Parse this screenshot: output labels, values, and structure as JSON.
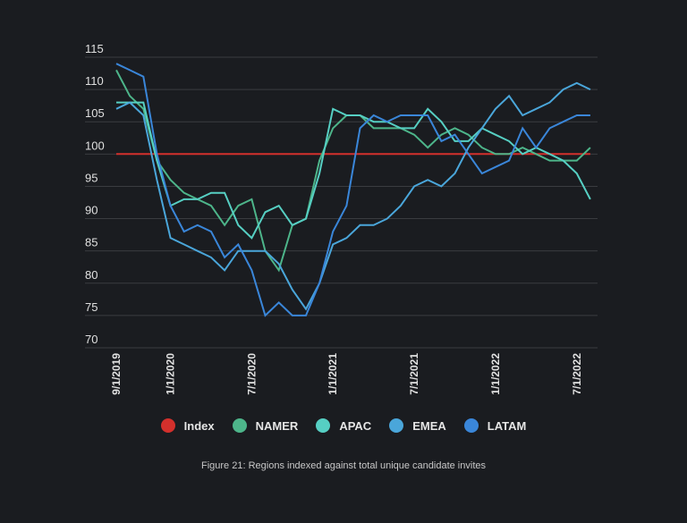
{
  "chart_data": {
    "type": "line",
    "title": "",
    "xlabel": "",
    "ylabel": "",
    "ylim": [
      70,
      115
    ],
    "yticks": [
      70,
      75,
      80,
      85,
      90,
      95,
      100,
      105,
      110,
      115
    ],
    "grid": true,
    "legend_position": "bottom",
    "x_start": "9/1/2019",
    "x_interval": "monthly",
    "x_tick_labels": [
      {
        "index": 0,
        "label": "9/1/2019"
      },
      {
        "index": 4,
        "label": "1/1/2020"
      },
      {
        "index": 10,
        "label": "7/1/2020"
      },
      {
        "index": 16,
        "label": "1/1/2021"
      },
      {
        "index": 22,
        "label": "7/1/2021"
      },
      {
        "index": 28,
        "label": "1/1/2022"
      },
      {
        "index": 34,
        "label": "7/1/2022"
      }
    ],
    "series": [
      {
        "name": "Index",
        "color": "#d3302c",
        "values": [
          100,
          100,
          100,
          100,
          100,
          100,
          100,
          100,
          100,
          100,
          100,
          100,
          100,
          100,
          100,
          100,
          100,
          100,
          100,
          100,
          100,
          100,
          100,
          100,
          100,
          100,
          100,
          100,
          100,
          100,
          100,
          100,
          100,
          100,
          100,
          100
        ]
      },
      {
        "name": "NAMER",
        "color": "#4db58a",
        "values": [
          113,
          109,
          107,
          99,
          96,
          94,
          93,
          92,
          89,
          92,
          93,
          85,
          82,
          89,
          90,
          99,
          104,
          106,
          106,
          104,
          104,
          104,
          103,
          101,
          103,
          104,
          103,
          101,
          100,
          100,
          101,
          100,
          99,
          99,
          99,
          101
        ]
      },
      {
        "name": "APAC",
        "color": "#56cfc3",
        "values": [
          108,
          108,
          108,
          99,
          92,
          93,
          93,
          94,
          94,
          89,
          87,
          91,
          92,
          89,
          90,
          97,
          107,
          106,
          106,
          105,
          105,
          104,
          104,
          107,
          105,
          102,
          102,
          104,
          103,
          102,
          100,
          101,
          100,
          99,
          97,
          93
        ]
      },
      {
        "name": "EMEA",
        "color": "#4aa6da",
        "values": [
          107,
          108,
          106,
          96,
          87,
          86,
          85,
          84,
          82,
          85,
          85,
          85,
          83,
          79,
          76,
          80,
          86,
          87,
          89,
          89,
          90,
          92,
          95,
          96,
          95,
          97,
          101,
          104,
          107,
          109,
          106,
          107,
          108,
          110,
          111,
          110
        ]
      },
      {
        "name": "LATAM",
        "color": "#3a86d9",
        "values": [
          114,
          113,
          112,
          100,
          92,
          88,
          89,
          88,
          84,
          86,
          82,
          75,
          77,
          75,
          75,
          80,
          88,
          92,
          104,
          106,
          105,
          106,
          106,
          106,
          102,
          103,
          100,
          97,
          98,
          99,
          104,
          101,
          104,
          105,
          106,
          106
        ]
      }
    ]
  },
  "caption": "Figure 21: Regions indexed against total unique candidate invites"
}
